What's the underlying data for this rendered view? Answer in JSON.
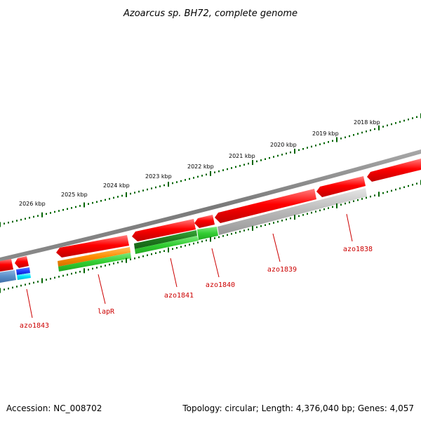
{
  "title": "Azoarcus sp. BH72, complete genome",
  "footer": {
    "accession": "Accession: NC_008702",
    "topology": "Topology: circular; Length: 4,376,040 bp; Genes: 4,057"
  },
  "ticks": [
    {
      "label": "2018 kbp"
    },
    {
      "label": "2019 kbp"
    },
    {
      "label": "2020 kbp"
    },
    {
      "label": "2021 kbp"
    },
    {
      "label": "2022 kbp"
    },
    {
      "label": "2023 kbp"
    },
    {
      "label": "2024 kbp"
    },
    {
      "label": "2025 kbp"
    },
    {
      "label": "2026 kbp"
    }
  ],
  "gene_labels": [
    "azo1838",
    "azo1839",
    "azo1840",
    "azo1841",
    "lapR",
    "azo1843"
  ],
  "colors": {
    "backbone": "#808080",
    "tick": "#006400",
    "cds": "#ff0000",
    "gene_label": "#cc0000",
    "leader": "#cc0000",
    "orange_feature": "#ff8c00",
    "green_feature": "#32cd32",
    "darkgreen_feature": "#228b22",
    "gray_feature": "#b0b0b0",
    "blue_feature": "#1f3fff",
    "cyan_feature": "#00e5ff",
    "steelblue_feature": "#5a8fc8"
  }
}
